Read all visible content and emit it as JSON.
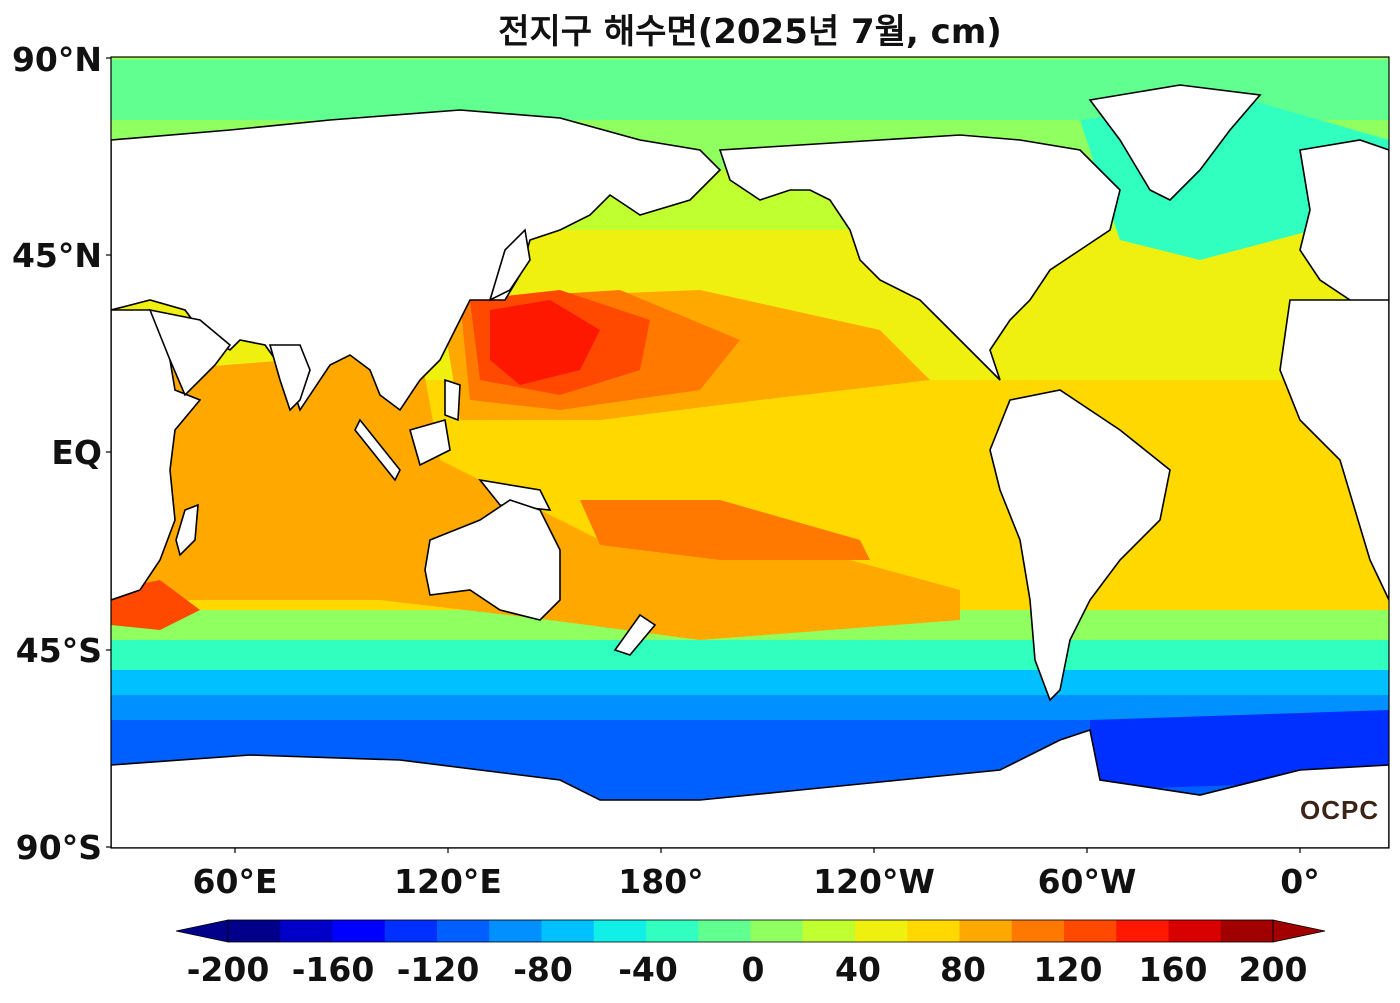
{
  "title": "전지구 해수면(2025년 7월, cm)",
  "y_axis_labels": [
    "90°N",
    "45°N",
    "EQ",
    "45°S",
    "90°S"
  ],
  "x_axis_labels": [
    "60°E",
    "120°E",
    "180°",
    "120°W",
    "60°W",
    "0°"
  ],
  "colorbar": {
    "tick_labels": [
      "-200",
      "-160",
      "-120",
      "-80",
      "-40",
      "0",
      "40",
      "80",
      "120",
      "160",
      "200"
    ],
    "colors": [
      "#00008b",
      "#0000c8",
      "#0000ff",
      "#0030ff",
      "#0060ff",
      "#0090ff",
      "#00c0ff",
      "#10f0e8",
      "#30ffc0",
      "#60ff90",
      "#90ff60",
      "#c0ff30",
      "#f0f010",
      "#ffd800",
      "#ffa800",
      "#ff7800",
      "#ff4800",
      "#ff1800",
      "#d80000",
      "#a00000"
    ],
    "extend": "both"
  },
  "logo_text": "OCPC",
  "colors": {
    "land": "#ffffff",
    "coastline": "#000000"
  }
}
